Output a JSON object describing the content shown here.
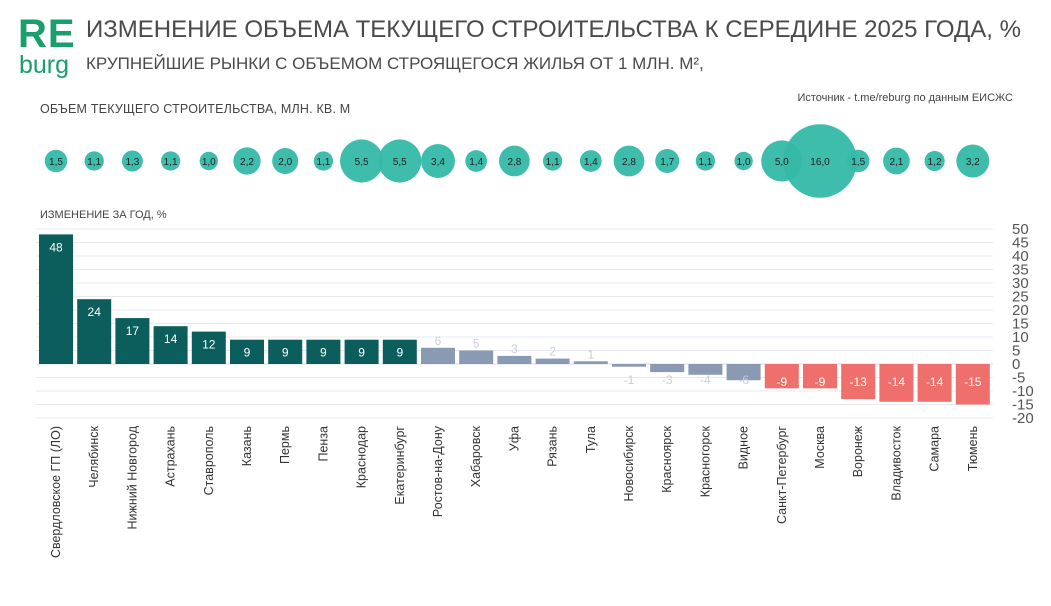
{
  "logo": {
    "top": "RE",
    "bottom": "burg"
  },
  "title": "ИЗМЕНЕНИЕ ОБЪЕМА ТЕКУЩЕГО СТРОИТЕЛЬСТВА К СЕРЕДИНЕ 2025 ГОДА, %",
  "subtitle": "КРУПНЕЙШИЕ РЫНКИ С ОБЪЕМОМ СТРОЯЩЕГОСЯ ЖИЛЬЯ ОТ 1 МЛН. М², ",
  "source": "Источник - t.me/reburg по данным ЕИСЖС",
  "volume_label": "ОБЪЕМ ТЕКУЩЕГО СТРОИТЕЛЬСТВА, МЛН. КВ. М",
  "change_label": "ИЗМЕНЕНИЕ ЗА ГОД, %",
  "colors": {
    "positive_strong": "#0b5e5c",
    "neutral": "#8b9ab3",
    "negative": "#ef6f6c",
    "bubble": "#35b9a8",
    "brand": "#1a9e6b"
  },
  "chart_data": [
    {
      "type": "bar",
      "title": "ИЗМЕНЕНИЕ ЗА ГОД, %",
      "categories": [
        "Свердловское ГП (ЛО)",
        "Челябинск",
        "Нижний Новгород",
        "Астрахань",
        "Ставрополь",
        "Казань",
        "Пермь",
        "Пенза",
        "Краснодар",
        "Екатеринбург",
        "Ростов-на-Дону",
        "Хабаровск",
        "Уфа",
        "Рязань",
        "Тула",
        "Новосибирск",
        "Красноярск",
        "Красногорск",
        "Видное",
        "Санкт-Петербург",
        "Москва",
        "Воронеж",
        "Владивосток",
        "Самара",
        "Тюмень"
      ],
      "values": [
        48,
        24,
        17,
        14,
        12,
        9,
        9,
        9,
        9,
        9,
        6,
        5,
        3,
        2,
        1,
        -1,
        -3,
        -4,
        -6,
        -9,
        -9,
        -13,
        -14,
        -14,
        -15
      ],
      "value_labels": [
        "48",
        "24",
        "17",
        "14",
        "12",
        "9",
        "9",
        "9",
        "9",
        "9",
        "6",
        "5",
        "3",
        "2",
        "1",
        "-1",
        "-3",
        "-4",
        "-6",
        "-9",
        "-9",
        "-13",
        "-14",
        "-14",
        "-15"
      ],
      "ylim": [
        -20,
        50
      ],
      "yticks": [
        "50",
        "45",
        "40",
        "35",
        "30",
        "25",
        "20",
        "15",
        "10",
        "5",
        "0",
        "-5",
        "-10",
        "-15",
        "-20"
      ],
      "ytick_values": [
        50,
        45,
        40,
        35,
        30,
        25,
        20,
        15,
        10,
        5,
        0,
        -5,
        -10,
        -15,
        -20
      ],
      "grid": true
    },
    {
      "type": "scatter",
      "title": "ОБЪЕМ ТЕКУЩЕГО СТРОИТЕЛЬСТВА, МЛН. КВ. М",
      "values": [
        1.5,
        1.1,
        1.3,
        1.1,
        1.0,
        2.2,
        2.0,
        1.1,
        5.5,
        5.5,
        3.4,
        1.4,
        2.8,
        1.1,
        1.4,
        2.8,
        1.7,
        1.1,
        1.0,
        5.0,
        16.0,
        1.5,
        2.1,
        1.2,
        3.2
      ],
      "value_labels": [
        "1,5",
        "1,1",
        "1,3",
        "1,1",
        "1,0",
        "2,2",
        "2,0",
        "1,1",
        "5,5",
        "5,5",
        "3,4",
        "1,4",
        "2,8",
        "1,1",
        "1,4",
        "2,8",
        "1,7",
        "1,1",
        "1,0",
        "5,0",
        "16,0",
        "1,5",
        "2,1",
        "1,2",
        "3,2"
      ]
    }
  ]
}
